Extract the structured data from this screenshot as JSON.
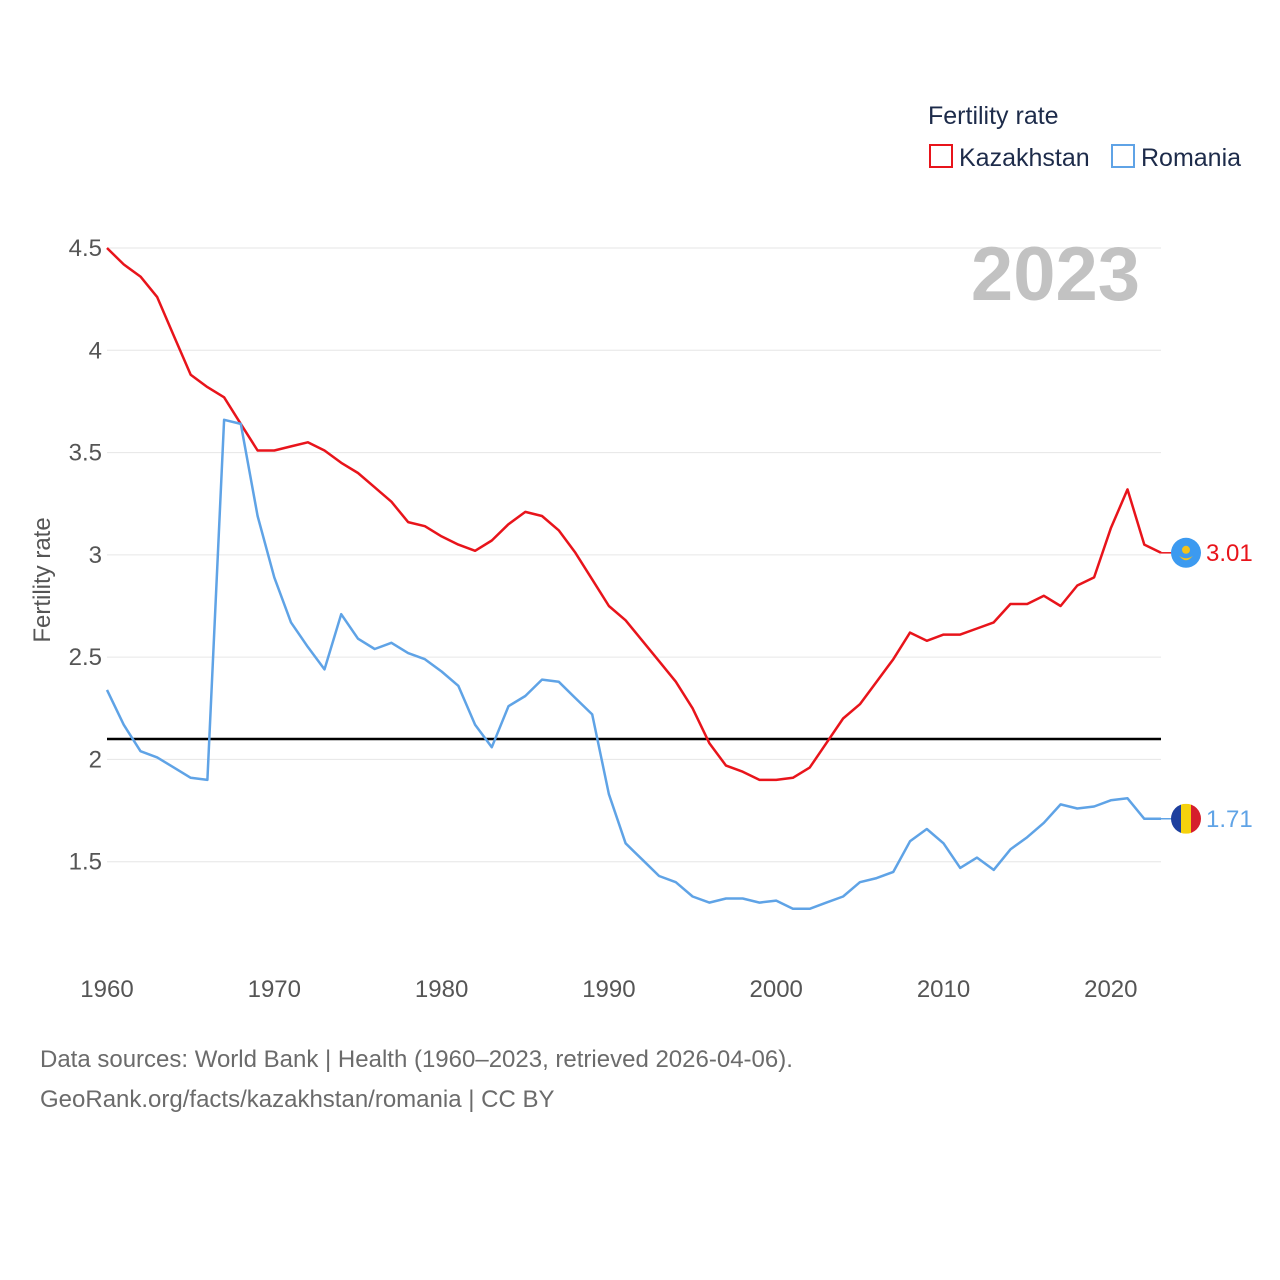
{
  "chart_data": {
    "type": "line",
    "title": "Fertility rate",
    "highlight_year": "2023",
    "xlabel": "",
    "ylabel": "Fertility rate",
    "xlim": [
      1960,
      2023
    ],
    "ylim": [
      1.0,
      4.5
    ],
    "x_ticks": [
      1960,
      1970,
      1980,
      1990,
      2000,
      2010,
      2020
    ],
    "y_ticks": [
      1.5,
      2,
      2.5,
      3,
      3.5,
      4,
      4.5
    ],
    "y_tick_labels": [
      "1.5",
      "2",
      "2.5",
      "3",
      "3.5",
      "4",
      "4.5"
    ],
    "reference_line": 2.1,
    "legend_title": "Fertility rate",
    "x": [
      1960,
      1961,
      1962,
      1963,
      1964,
      1965,
      1966,
      1967,
      1968,
      1969,
      1970,
      1971,
      1972,
      1973,
      1974,
      1975,
      1976,
      1977,
      1978,
      1979,
      1980,
      1981,
      1982,
      1983,
      1984,
      1985,
      1986,
      1987,
      1988,
      1989,
      1990,
      1991,
      1992,
      1993,
      1994,
      1995,
      1996,
      1997,
      1998,
      1999,
      2000,
      2001,
      2002,
      2003,
      2004,
      2005,
      2006,
      2007,
      2008,
      2009,
      2010,
      2011,
      2012,
      2013,
      2014,
      2015,
      2016,
      2017,
      2018,
      2019,
      2020,
      2021,
      2022,
      2023
    ],
    "series": [
      {
        "name": "Kazakhstan",
        "color": "#e8141b",
        "end_label": "3.01",
        "values": [
          4.5,
          4.42,
          4.36,
          4.26,
          4.07,
          3.88,
          3.82,
          3.77,
          3.64,
          3.51,
          3.51,
          3.53,
          3.55,
          3.51,
          3.45,
          3.4,
          3.33,
          3.26,
          3.16,
          3.14,
          3.09,
          3.05,
          3.02,
          3.07,
          3.15,
          3.21,
          3.19,
          3.12,
          3.01,
          2.88,
          2.75,
          2.68,
          2.58,
          2.48,
          2.38,
          2.25,
          2.08,
          1.97,
          1.94,
          1.9,
          1.9,
          1.91,
          1.96,
          2.08,
          2.2,
          2.27,
          2.38,
          2.49,
          2.62,
          2.58,
          2.61,
          2.61,
          2.64,
          2.67,
          2.76,
          2.76,
          2.8,
          2.75,
          2.85,
          2.89,
          3.13,
          3.32,
          3.05,
          3.01
        ]
      },
      {
        "name": "Romania",
        "color": "#5fa3e6",
        "end_label": "1.71",
        "values": [
          2.34,
          2.17,
          2.04,
          2.01,
          1.96,
          1.91,
          1.9,
          3.66,
          3.64,
          3.19,
          2.89,
          2.67,
          2.55,
          2.44,
          2.71,
          2.59,
          2.54,
          2.57,
          2.52,
          2.49,
          2.43,
          2.36,
          2.17,
          2.06,
          2.26,
          2.31,
          2.39,
          2.38,
          2.3,
          2.22,
          1.83,
          1.59,
          1.51,
          1.43,
          1.4,
          1.33,
          1.3,
          1.32,
          1.32,
          1.3,
          1.31,
          1.27,
          1.27,
          1.3,
          1.33,
          1.4,
          1.42,
          1.45,
          1.6,
          1.66,
          1.59,
          1.47,
          1.52,
          1.46,
          1.56,
          1.62,
          1.69,
          1.78,
          1.76,
          1.77,
          1.8,
          1.81,
          1.71,
          1.71
        ]
      }
    ]
  },
  "footer": {
    "line1": "Data sources: World Bank | Health (1960–2023, retrieved 2026-04-06).",
    "line2": "GeoRank.org/facts/kazakhstan/romania | CC BY"
  }
}
